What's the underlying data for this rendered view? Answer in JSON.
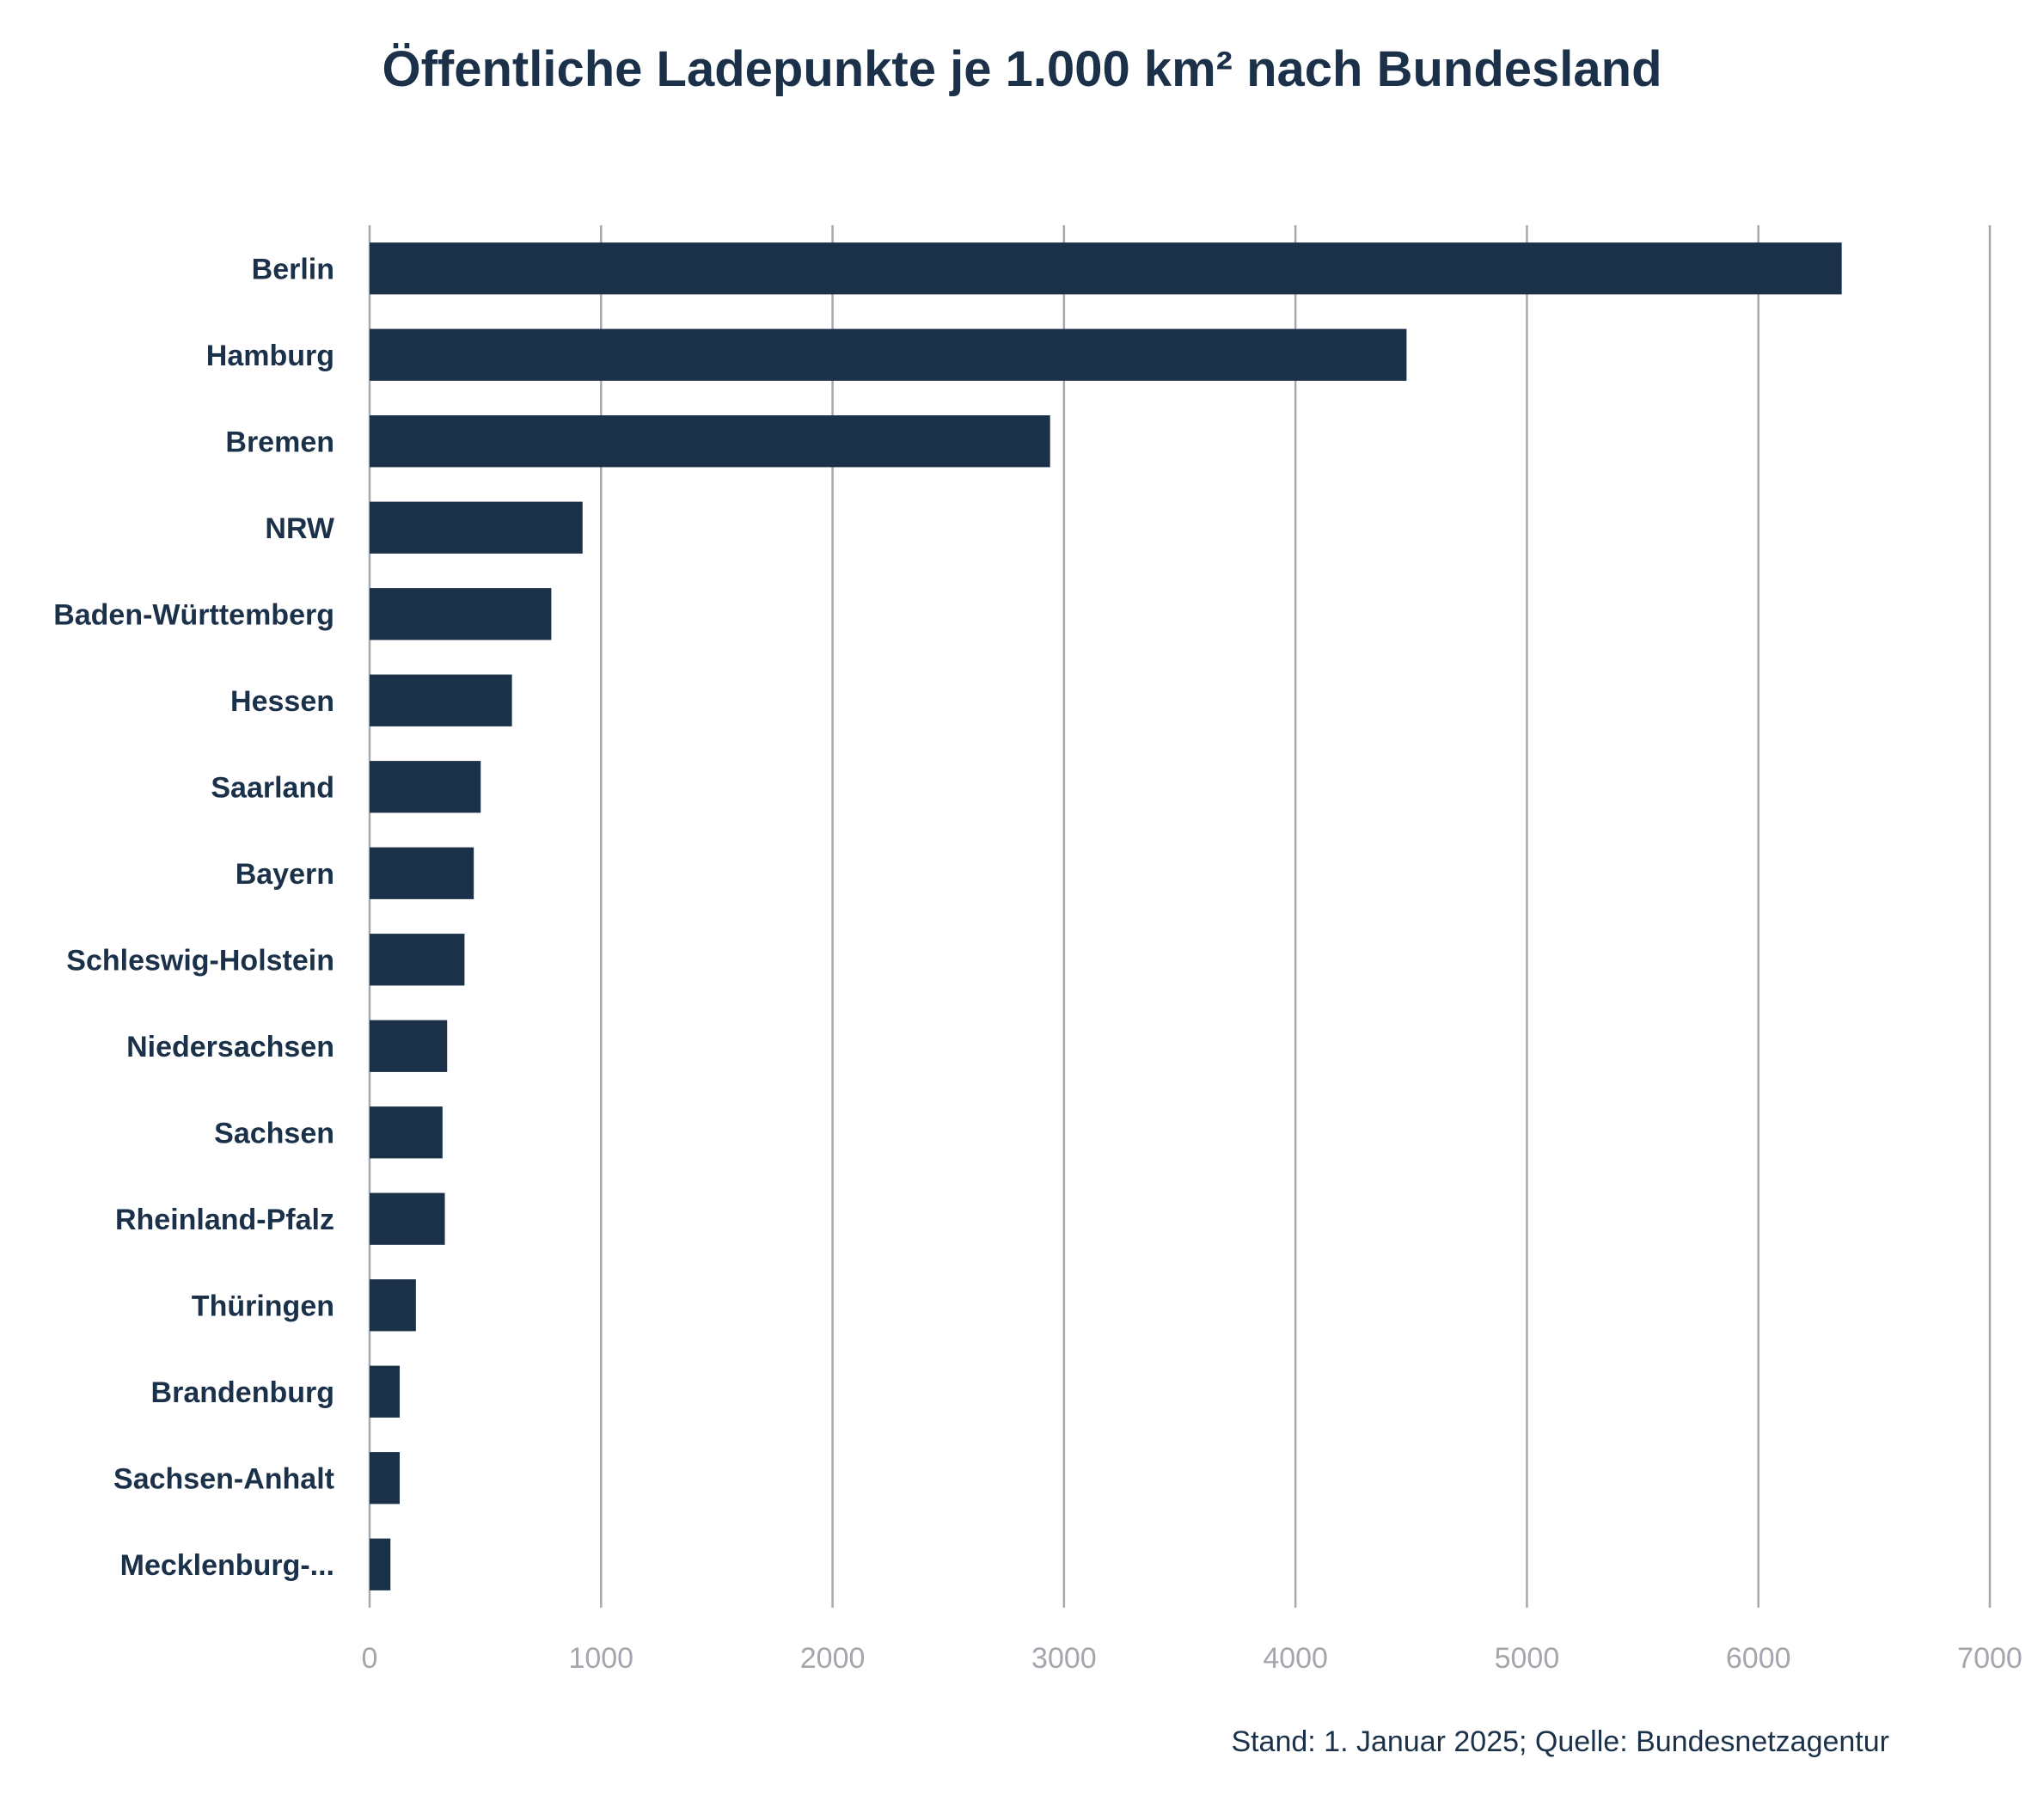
{
  "chart_data": {
    "type": "bar",
    "orientation": "horizontal",
    "title": "Öffentliche Ladepunkte je 1.000 km² nach Bundesland",
    "xlabel": "",
    "ylabel": "",
    "categories": [
      "Berlin",
      "Hamburg",
      "Bremen",
      "NRW",
      "Baden-Württemberg",
      "Hessen",
      "Saarland",
      "Bayern",
      "Schleswig-Holstein",
      "Niedersachsen",
      "Sachsen",
      "Rheinland-Pfalz",
      "Thüringen",
      "Brandenburg",
      "Sachsen-Anhalt",
      "Mecklenburg-..."
    ],
    "values": [
      6360,
      4480,
      2940,
      920,
      785,
      615,
      480,
      450,
      410,
      335,
      315,
      325,
      200,
      130,
      130,
      90
    ],
    "xlim": [
      0,
      7000
    ],
    "xticks": [
      0,
      1000,
      2000,
      3000,
      4000,
      5000,
      6000,
      7000
    ],
    "grid": "vertical",
    "legend": "none",
    "bar_color": "#1b3149",
    "source": "Stand: 1. Januar 2025; Quelle: Bundesnetzagentur"
  }
}
